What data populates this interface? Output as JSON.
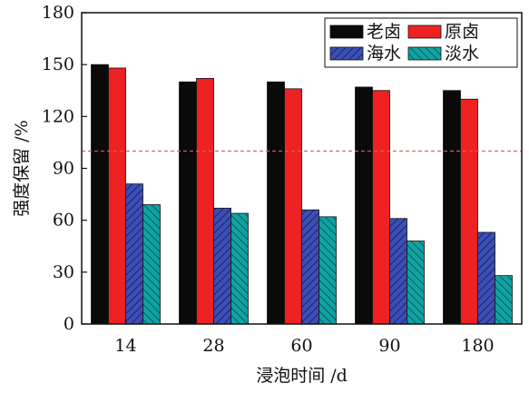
{
  "chart_data": {
    "type": "bar",
    "categories": [
      "14",
      "28",
      "60",
      "90",
      "180"
    ],
    "series": [
      {
        "name": "老卤",
        "values": [
          150,
          140,
          140,
          137,
          135
        ],
        "color": "#0a0a0a",
        "pattern": "solid"
      },
      {
        "name": "原卤",
        "values": [
          148,
          142,
          136,
          135,
          130
        ],
        "color": "#ee2222",
        "pattern": "solid"
      },
      {
        "name": "海水",
        "values": [
          81,
          67,
          66,
          61,
          53
        ],
        "color": "#3c4fb4",
        "pattern": "hatch"
      },
      {
        "name": "淡水",
        "values": [
          69,
          64,
          62,
          48,
          28
        ],
        "color": "#11a3a3",
        "pattern": "hatch"
      }
    ],
    "xlabel": "浸泡时间 /d",
    "ylabel": "强度保留 /%",
    "ylim": [
      0,
      180
    ],
    "yticks": [
      0,
      30,
      60,
      90,
      120,
      150,
      180
    ],
    "reference_line": {
      "value": 100,
      "color": "#e05a5a",
      "style": "dashed"
    },
    "legend_position": "top-right",
    "grid": false
  }
}
